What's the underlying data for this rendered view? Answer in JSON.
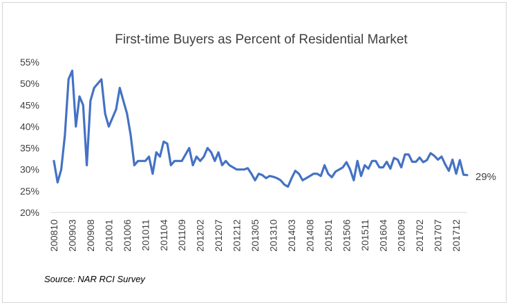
{
  "chart_data": {
    "type": "line",
    "title": "First-time Buyers as Percent of Residential Market",
    "ylabel": "",
    "xlabel": "",
    "ylim": [
      20,
      55
    ],
    "y_ticks": [
      "20%",
      "25%",
      "30%",
      "35%",
      "40%",
      "45%",
      "50%",
      "55%"
    ],
    "x_tick_labels": [
      "200810",
      "200903",
      "200908",
      "201001",
      "201006",
      "201011",
      "201104",
      "201109",
      "201202",
      "201207",
      "201212",
      "201305",
      "201310",
      "201403",
      "201408",
      "201501",
      "201506",
      "201511",
      "201604",
      "201609",
      "201702",
      "201707",
      "201712"
    ],
    "grid": false,
    "series": [
      {
        "color": "#4472C4",
        "values": [
          32,
          27,
          30,
          38,
          51,
          53,
          40,
          47,
          45,
          31,
          46,
          49,
          50,
          51,
          43,
          40,
          42,
          44,
          49,
          46,
          43,
          38,
          31,
          32,
          32,
          32,
          33,
          29,
          34,
          33,
          36.5,
          36,
          31,
          32,
          32,
          32,
          33.5,
          35,
          31,
          33,
          32,
          33,
          35,
          34,
          32,
          34,
          31,
          32,
          31,
          30.5,
          30,
          30,
          30,
          30.3,
          29,
          27.5,
          29,
          28.7,
          28,
          28.5,
          28.3,
          28,
          27.5,
          26.5,
          26,
          28,
          29.7,
          29,
          27.5,
          28,
          28.5,
          29,
          29,
          28.5,
          31,
          29,
          28.2,
          29.5,
          30,
          30.5,
          31.7,
          30,
          27.5,
          32,
          28.5,
          31,
          30.2,
          32,
          32,
          30.5,
          30.5,
          31.8,
          30.2,
          32.7,
          32.3,
          30.5,
          33.5,
          33.5,
          31.8,
          31.8,
          32.8,
          31.7,
          32.2,
          33.8,
          33.2,
          32.3,
          33,
          31.2,
          29.7,
          32.3,
          29,
          32.2,
          28.8,
          28.7
        ]
      }
    ],
    "end_label": "29%",
    "source": "Source: NAR RCI Survey"
  }
}
